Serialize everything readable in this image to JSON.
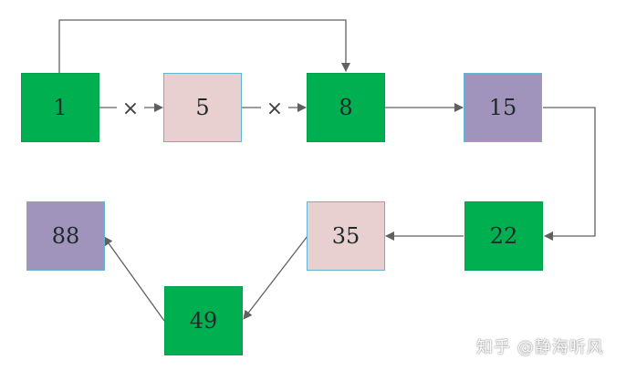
{
  "nodes": {
    "n1": {
      "label": "1",
      "color": "#00b050"
    },
    "n5": {
      "label": "5",
      "color": "#e8d0d0"
    },
    "n8": {
      "label": "8",
      "color": "#00b050"
    },
    "n15": {
      "label": "15",
      "color": "#a094bc"
    },
    "n22": {
      "label": "22",
      "color": "#00b050"
    },
    "n35": {
      "label": "35",
      "color": "#e8d0d0"
    },
    "n49": {
      "label": "49",
      "color": "#00b050"
    },
    "n88": {
      "label": "88",
      "color": "#a094bc"
    }
  },
  "edges": {
    "cross_mark": "×"
  },
  "colors": {
    "edge": "#606060",
    "pink_border": "#5fb6d6"
  },
  "watermark": "知乎 @静海听风"
}
